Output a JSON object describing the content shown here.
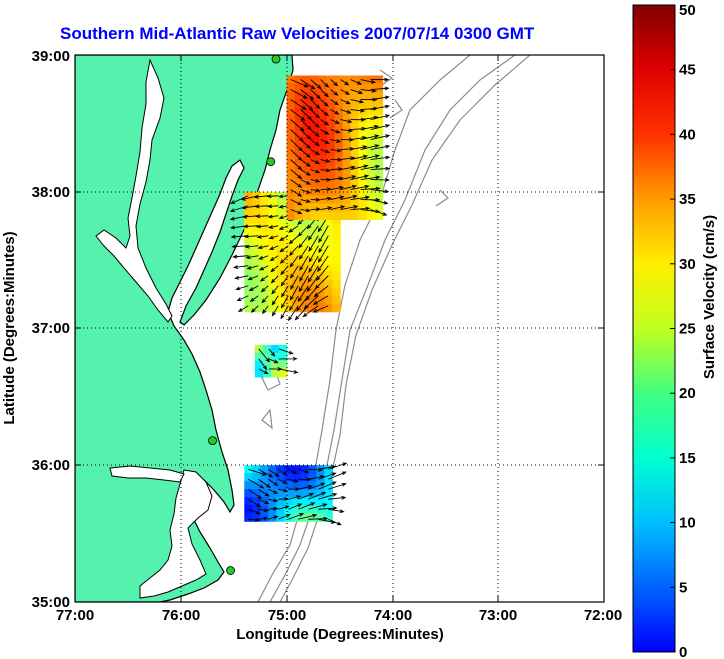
{
  "chart_data": {
    "type": "heatmap",
    "title": "Southern Mid-Atlantic Raw Velocities 2007/07/14 0300 GMT",
    "xlabel": "Longitude (Degrees:Minutes)",
    "ylabel": "Latitude (Degrees:Minutes)",
    "xlim": [
      -77,
      -72
    ],
    "ylim": [
      35,
      39
    ],
    "x_ticks": [
      {
        "value": -77,
        "label": "77:00"
      },
      {
        "value": -76,
        "label": "76:00"
      },
      {
        "value": -75,
        "label": "75:00"
      },
      {
        "value": -74,
        "label": "74:00"
      },
      {
        "value": -73,
        "label": "73:00"
      },
      {
        "value": -72,
        "label": "72:00"
      }
    ],
    "y_ticks": [
      {
        "value": 35,
        "label": "35:00"
      },
      {
        "value": 36,
        "label": "36:00"
      },
      {
        "value": 37,
        "label": "37:00"
      },
      {
        "value": 38,
        "label": "38:00"
      },
      {
        "value": 39,
        "label": "39:00"
      }
    ],
    "grid": true,
    "colorbar": {
      "label": "Surface Velocity (cm/s)",
      "min": 0,
      "max": 50,
      "ticks": [
        0,
        5,
        10,
        15,
        20,
        25,
        30,
        35,
        40,
        45,
        50
      ],
      "colormap": "jet"
    },
    "stations": [
      {
        "lon": -75.1,
        "lat": 38.97
      },
      {
        "lon": -75.15,
        "lat": 38.22
      },
      {
        "lon": -75.7,
        "lat": 36.18
      },
      {
        "lon": -75.53,
        "lat": 35.23
      }
    ],
    "regions": [
      {
        "lon_range": [
          -75.4,
          -74.53
        ],
        "lat_range": [
          37.15,
          38.0
        ],
        "speed": 32
      },
      {
        "lon_range": [
          -75.0,
          -74.12
        ],
        "lat_range": [
          37.8,
          38.85
        ],
        "speed": 35
      },
      {
        "lon_range": [
          -75.3,
          -75.0
        ],
        "lat_range": [
          36.68,
          36.88
        ],
        "speed": 24
      },
      {
        "lon_range": [
          -75.4,
          -74.6
        ],
        "lat_range": [
          35.6,
          36.0
        ],
        "speed": 16
      }
    ]
  },
  "colors": {
    "land": "#55f2ad",
    "coast": "#000000",
    "bathymetry": "#8c8c8c",
    "title": "#0000ff",
    "vector": "#000000"
  }
}
